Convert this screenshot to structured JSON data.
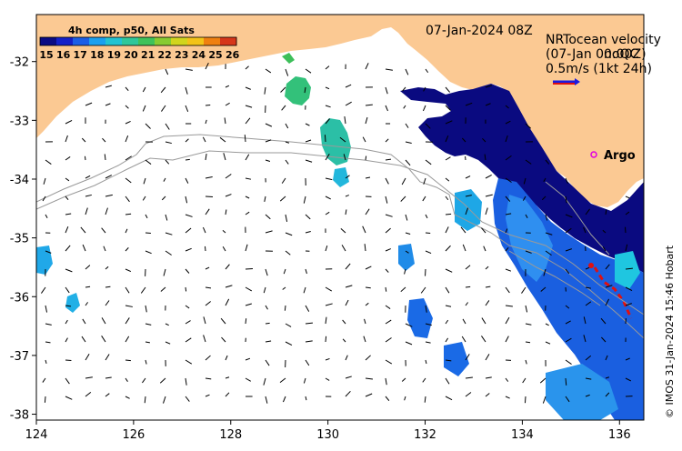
{
  "date_label": "07-Jan-2024 08Z",
  "colorbar": {
    "title": "4h comp, p50, All Sats",
    "ticks": [
      "15",
      "16",
      "17",
      "18",
      "19",
      "20",
      "21",
      "22",
      "23",
      "24",
      "25",
      "26"
    ],
    "colors": [
      "#0b0b83",
      "#1420c8",
      "#1b5ee6",
      "#1aa0ef",
      "#22c3d2",
      "#2fc79a",
      "#3fc25a",
      "#87cb31",
      "#d1d51d",
      "#f3c318",
      "#ef8010",
      "#d6361a"
    ]
  },
  "velocity": {
    "line1": "NRTocean velocity",
    "line2": "(07-Jan 00:00Z)",
    "line3": "noQC",
    "line4": "0.5m/s (1kt 24h)"
  },
  "argo": {
    "label": "Argo",
    "color": "#e000e0"
  },
  "credit": "© IMOS 31-Jan-2024 15:46 Hobart",
  "axes": {
    "x_ticks": [
      "124",
      "126",
      "128",
      "130",
      "132",
      "134",
      "136"
    ],
    "y_ticks": [
      "-32",
      "-33",
      "-34",
      "-35",
      "-36",
      "-37",
      "-38"
    ],
    "lon_range": [
      124,
      136.5
    ],
    "lat_range": [
      -38.1,
      -31.2
    ]
  },
  "colors": {
    "land": "#fbc993",
    "sea": "#ffffff",
    "cold": "#0a0a80",
    "blue": "#1a5fe0",
    "cyan": "#20a8e8",
    "teal": "#2ec29a",
    "green": "#3dbf5a",
    "red": "#e01010"
  }
}
